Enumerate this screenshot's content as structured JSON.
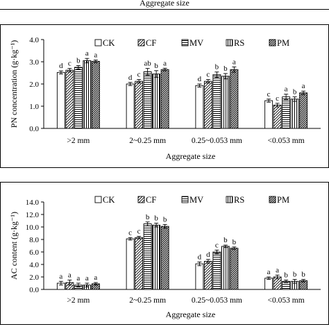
{
  "header": {
    "top_caption": "Aggregate size"
  },
  "chart_data": [
    {
      "type": "bar",
      "title": "",
      "ylabel": "PN concentration (g·kg⁻¹)",
      "xlabel": "Aggregate size",
      "ylim": [
        0,
        4.0
      ],
      "yticks": [
        "0.0",
        "1.0",
        "2.0",
        "3.0",
        "4.0"
      ],
      "ytick_values": [
        0,
        1,
        2,
        3,
        4
      ],
      "legend_position": "top",
      "categories": [
        ">2 mm",
        "2~0.25 mm",
        "0.25~0.053 mm",
        "<0.053 mm"
      ],
      "series": [
        {
          "name": "CK",
          "pattern": "white",
          "values": [
            2.52,
            2.0,
            1.93,
            1.25
          ],
          "errors": [
            0.07,
            0.07,
            0.07,
            0.07
          ],
          "letters": [
            "d",
            "d",
            "d",
            "c"
          ]
        },
        {
          "name": "CF",
          "pattern": "diag",
          "values": [
            2.62,
            2.12,
            2.12,
            1.05
          ],
          "errors": [
            0.08,
            0.08,
            0.08,
            0.08
          ],
          "letters": [
            "c",
            "c",
            "c",
            "c"
          ]
        },
        {
          "name": "MV",
          "pattern": "hlines",
          "values": [
            2.75,
            2.55,
            2.42,
            1.42
          ],
          "errors": [
            0.08,
            0.15,
            0.12,
            0.12
          ],
          "letters": [
            "b",
            "ab",
            "b",
            "a"
          ]
        },
        {
          "name": "RS",
          "pattern": "vlines",
          "values": [
            3.05,
            2.45,
            2.35,
            1.32
          ],
          "errors": [
            0.1,
            0.15,
            0.12,
            0.1
          ],
          "letters": [
            "a",
            "b",
            "b",
            "b"
          ]
        },
        {
          "name": "PM",
          "pattern": "diagdense",
          "values": [
            3.02,
            2.65,
            2.65,
            1.6
          ],
          "errors": [
            0.06,
            0.06,
            0.12,
            0.08
          ],
          "letters": [
            "a",
            "a",
            "a",
            "a"
          ]
        }
      ]
    },
    {
      "type": "bar",
      "title": "",
      "ylabel": "AC content (g·kg⁻¹)",
      "xlabel": "Aggregate size",
      "ylim": [
        0,
        14.0
      ],
      "yticks": [
        "0.0",
        "2.0",
        "4.0",
        "6.0",
        "8.0",
        "10.0",
        "12.0",
        "14.0"
      ],
      "ytick_values": [
        0,
        2,
        4,
        6,
        8,
        10,
        12,
        14
      ],
      "legend_position": "top",
      "categories": [
        ">2 mm",
        "2~0.25 mm",
        "0.25~0.053 mm",
        "<0.053 mm"
      ],
      "series": [
        {
          "name": "CK",
          "pattern": "white",
          "values": [
            1.0,
            8.1,
            4.1,
            1.8
          ],
          "errors": [
            0.3,
            0.2,
            0.3,
            0.2
          ],
          "letters": [
            "a",
            "c",
            "d",
            "a"
          ]
        },
        {
          "name": "CF",
          "pattern": "diag",
          "values": [
            1.1,
            8.3,
            4.5,
            2.0
          ],
          "errors": [
            0.4,
            0.2,
            0.3,
            0.3
          ],
          "letters": [
            "a",
            "c",
            "d",
            "a"
          ]
        },
        {
          "name": "MV",
          "pattern": "hlines",
          "values": [
            0.7,
            10.5,
            6.0,
            1.3
          ],
          "errors": [
            0.3,
            0.3,
            0.3,
            0.2
          ],
          "letters": [
            "a",
            "b",
            "c",
            "b"
          ]
        },
        {
          "name": "RS",
          "pattern": "vlines",
          "values": [
            0.7,
            10.3,
            6.9,
            1.3
          ],
          "errors": [
            0.3,
            0.3,
            0.2,
            0.3
          ],
          "letters": [
            "a",
            "b",
            "b",
            "b"
          ]
        },
        {
          "name": "PM",
          "pattern": "diagdense",
          "values": [
            0.9,
            10.1,
            6.6,
            1.4
          ],
          "errors": [
            0.2,
            0.3,
            0.2,
            0.2
          ],
          "letters": [
            "a",
            "b",
            "b",
            "b"
          ]
        }
      ]
    }
  ]
}
